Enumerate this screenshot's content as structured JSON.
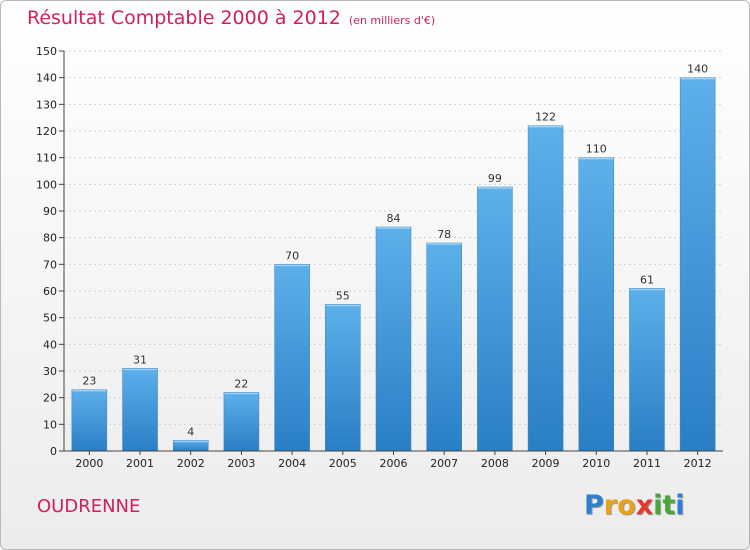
{
  "chart_data": {
    "type": "bar",
    "title": "Résultat Comptable 2000 à 2012",
    "subtitle": "(en milliers d'€)",
    "categories": [
      "2000",
      "2001",
      "2002",
      "2003",
      "2004",
      "2005",
      "2006",
      "2007",
      "2008",
      "2009",
      "2010",
      "2011",
      "2012"
    ],
    "values": [
      23,
      31,
      4,
      22,
      70,
      55,
      84,
      78,
      99,
      122,
      110,
      61,
      140
    ],
    "ylim": [
      0,
      150
    ],
    "yticks": [
      0,
      10,
      20,
      30,
      40,
      50,
      60,
      70,
      80,
      90,
      100,
      110,
      120,
      130,
      140,
      150
    ],
    "xlabel": "",
    "ylabel": "",
    "grid": true,
    "bar_color": "#3a90d2"
  },
  "footer": {
    "commune": "OUDRENNE",
    "logo": {
      "letters": [
        "P",
        "r",
        "o",
        "x",
        "i",
        "t",
        "i"
      ],
      "colors": [
        "#2f7fd0",
        "#e8a21a",
        "#e8a21a",
        "#e23a2a",
        "#4aa83a",
        "#4aa83a",
        "#2f7fd0"
      ]
    }
  }
}
